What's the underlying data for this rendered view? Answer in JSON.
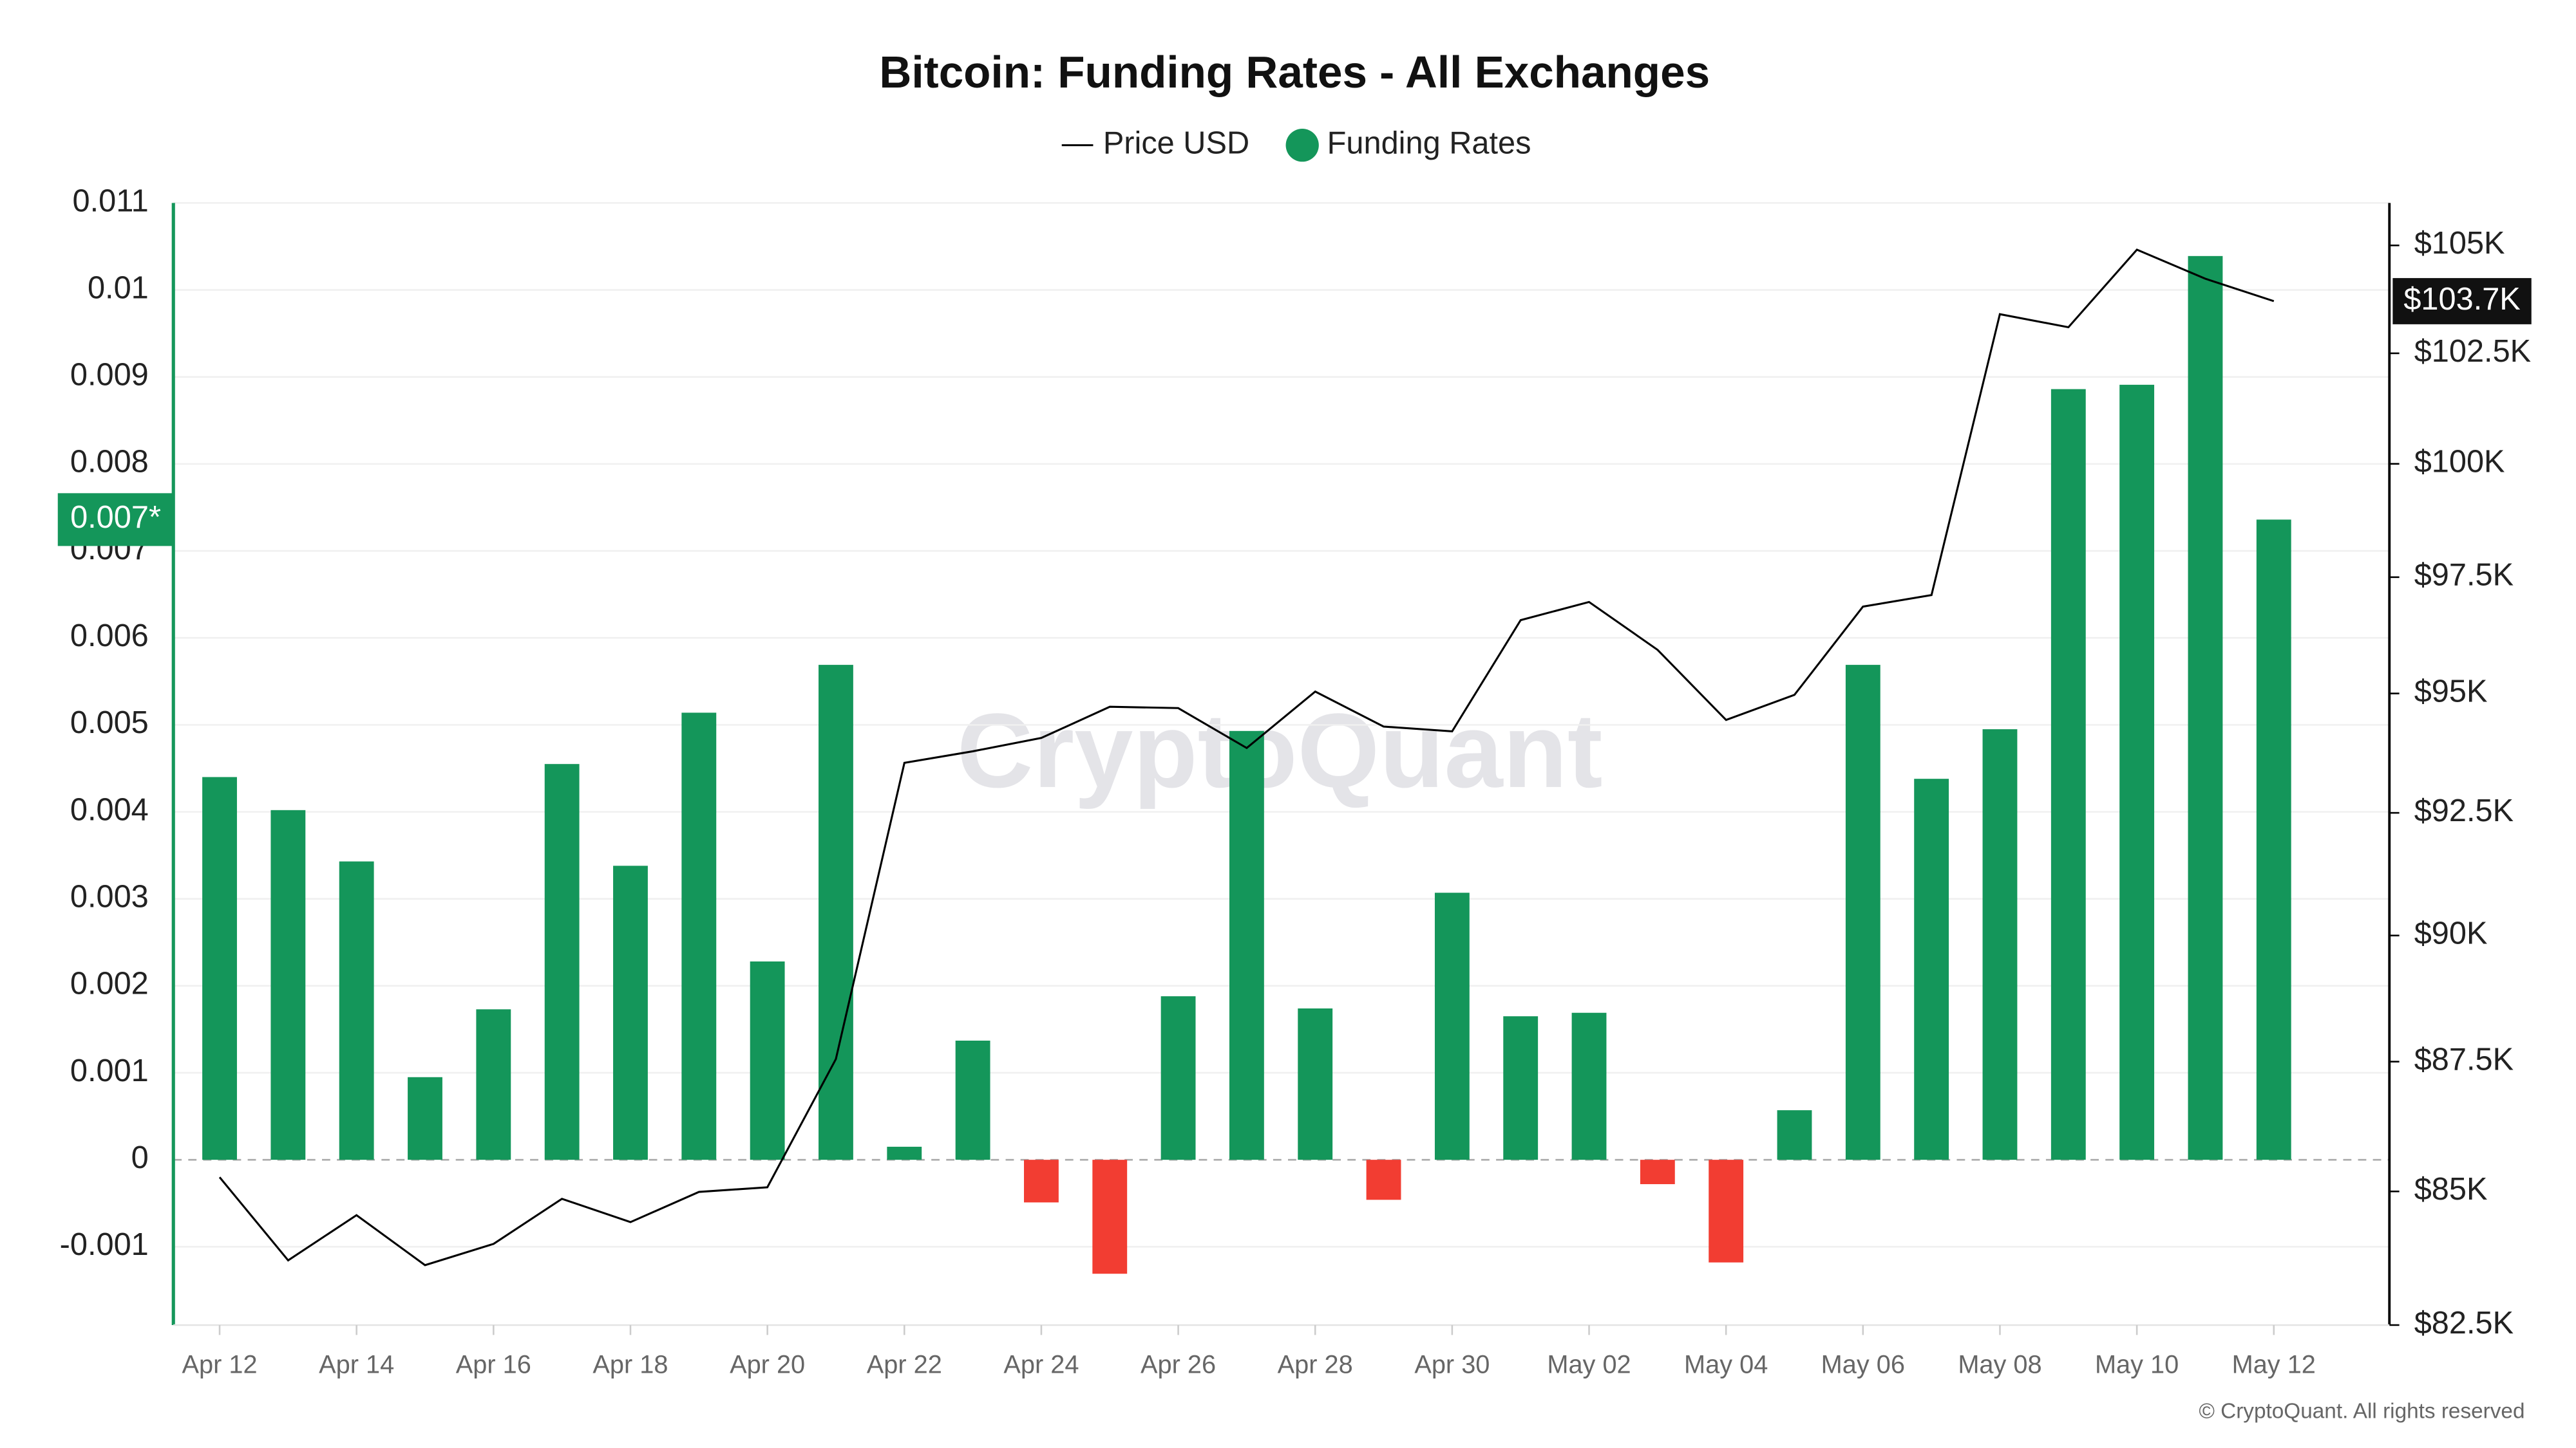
{
  "chart_data": {
    "type": "bar",
    "title": "Bitcoin: Funding Rates - All Exchanges",
    "categories": [
      "Apr 12",
      null,
      "Apr 14",
      null,
      "Apr 16",
      null,
      "Apr 18",
      null,
      "Apr 20",
      null,
      "Apr 22",
      null,
      "Apr 24",
      null,
      "Apr 26",
      null,
      "Apr 28",
      null,
      "Apr 30",
      null,
      "May 02",
      null,
      "May 04",
      null,
      "May 06",
      null,
      "May 08",
      null,
      "May 10",
      null,
      "May 12"
    ],
    "series": [
      {
        "name": "Price USD",
        "type": "line",
        "color": "#000000",
        "axis": "y2",
        "values": [
          85270,
          83700,
          84550,
          83610,
          84010,
          84860,
          84420,
          84990,
          85080,
          87550,
          93540,
          93780,
          94060,
          94720,
          94690,
          93850,
          95040,
          94300,
          94200,
          96570,
          96960,
          95930,
          94440,
          94970,
          96860,
          97110,
          103400,
          103100,
          104900,
          104220,
          103700
        ],
        "last_label": "$103.7K"
      },
      {
        "name": "Funding Rates",
        "type": "bar",
        "color": "#14965a",
        "negative_color": "#f23d32",
        "values": [
          0.0044,
          0.00402,
          0.00343,
          0.00095,
          0.00173,
          0.00455,
          0.00338,
          0.00514,
          0.00228,
          0.00569,
          0.00015,
          0.00137,
          -0.00049,
          -0.00131,
          0.00188,
          0.00493,
          0.00174,
          -0.00046,
          0.00307,
          0.00165,
          0.00169,
          -0.00028,
          -0.00118,
          0.00057,
          0.00569,
          0.00438,
          0.00495,
          0.00886,
          0.00891,
          0.01039,
          0.00736
        ],
        "last_label": "0.007*"
      }
    ],
    "ylim": [
      -0.0019,
      0.011
    ],
    "yticks": [
      -0.001,
      0,
      0.001,
      0.002,
      0.003,
      0.004,
      0.005,
      0.006,
      0.007,
      0.008,
      0.009,
      0.01,
      0.011
    ],
    "y2lim": [
      82500,
      106000
    ],
    "y2scale": "log",
    "y2ticks": [
      {
        "value": 82500,
        "label": "$82.5K"
      },
      {
        "value": 85000,
        "label": "$85K"
      },
      {
        "value": 87500,
        "label": "$87.5K"
      },
      {
        "value": 90000,
        "label": "$90K"
      },
      {
        "value": 92500,
        "label": "$92.5K"
      },
      {
        "value": 95000,
        "label": "$95K"
      },
      {
        "value": 97500,
        "label": "$97.5K"
      },
      {
        "value": 100000,
        "label": "$100K"
      },
      {
        "value": 102500,
        "label": "$102.5K"
      },
      {
        "value": 105000,
        "label": "$105K"
      }
    ],
    "grid": true,
    "legend": "top",
    "watermark": "CryptoQuant",
    "credit": "© CryptoQuant. All rights reserved"
  }
}
